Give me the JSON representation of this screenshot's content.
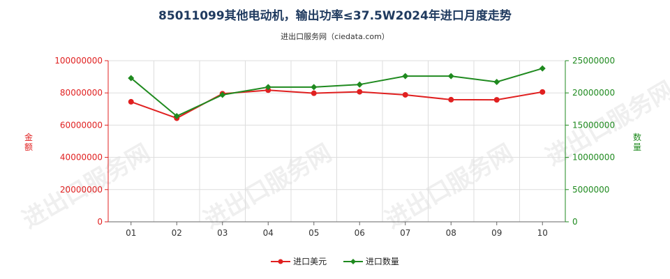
{
  "header": {
    "title": "85011099其他电动机，输出功率≤37.5W2024年进口月度走势",
    "subtitle": "进出口服务网（ciedata.com）",
    "watermark": "进出口服务网"
  },
  "colors": {
    "amount": "#e02020",
    "quantity": "#1f8a1f",
    "grid": "#dddddd",
    "axis": "#666666"
  },
  "chart_data": {
    "type": "line",
    "categories": [
      "01",
      "02",
      "03",
      "04",
      "05",
      "06",
      "07",
      "08",
      "09",
      "10"
    ],
    "series": [
      {
        "name": "进口美元",
        "axis": "left",
        "values": [
          74500000,
          64300000,
          79500000,
          81700000,
          79800000,
          80700000,
          78800000,
          75800000,
          75700000,
          80600000
        ]
      },
      {
        "name": "进口数量",
        "axis": "right",
        "values": [
          22300000,
          16400000,
          19700000,
          20900000,
          20900000,
          21300000,
          22600000,
          22600000,
          21700000,
          23800000
        ]
      }
    ],
    "y_left": {
      "label": "金额",
      "lim": [
        0,
        100000000
      ],
      "ticks": [
        "0",
        "20000000",
        "40000000",
        "60000000",
        "80000000",
        "100000000"
      ]
    },
    "y_right": {
      "label": "数量",
      "lim": [
        0,
        25000000
      ],
      "ticks": [
        "0",
        "5000000",
        "10000000",
        "15000000",
        "20000000",
        "25000000"
      ]
    },
    "grid": true,
    "legend_position": "bottom"
  }
}
